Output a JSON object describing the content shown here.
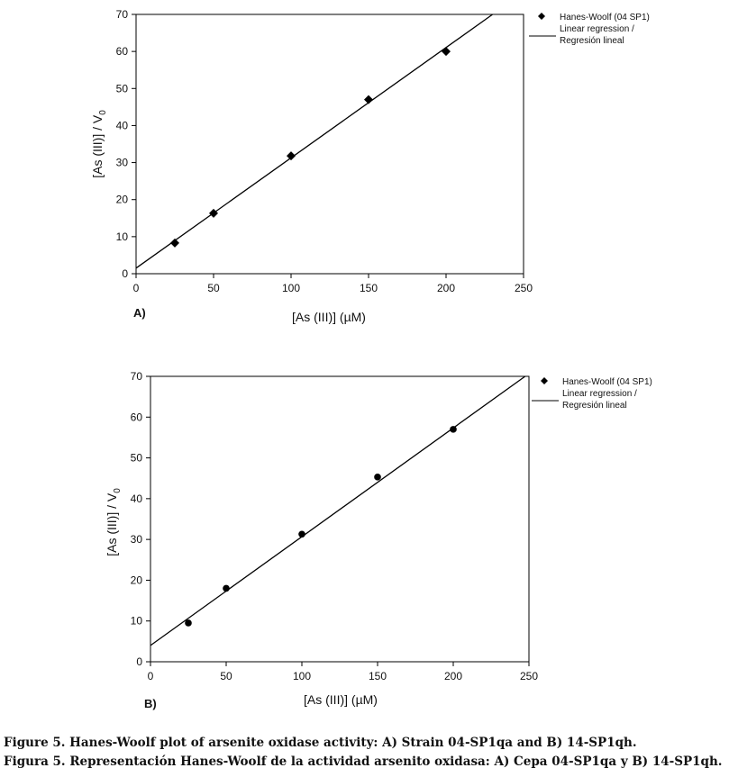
{
  "chart_data": [
    {
      "type": "scatter",
      "panel_label": "A)",
      "xlabel": "[As (III)] (µM)",
      "ylabel_main": "[As (III)] / V",
      "ylabel_sub": "0",
      "xlim": [
        0,
        250
      ],
      "ylim": [
        0,
        70
      ],
      "xticks": [
        0,
        50,
        100,
        150,
        200,
        250
      ],
      "yticks": [
        0,
        10,
        20,
        30,
        40,
        50,
        60,
        70
      ],
      "grid": false,
      "marker": "diamond",
      "series": [
        {
          "name": "Hanes-Woolf (04 SP1)",
          "x": [
            25,
            50,
            100,
            150,
            200
          ],
          "y": [
            8.3,
            16.3,
            31.8,
            47,
            60
          ]
        }
      ],
      "regression": {
        "name": "Linear regression / Regresión lineal",
        "intercept": 1.5,
        "slope": 0.2978
      },
      "legend": {
        "placement": "top-right, outside",
        "label1": "Hanes-Woolf (04 SP1)",
        "label2a": "Linear regression /",
        "label2b": "Regresión lineal"
      }
    },
    {
      "type": "scatter",
      "panel_label": "B)",
      "xlabel": "[As (III)] (µM)",
      "ylabel_main": "[As (III)] / V",
      "ylabel_sub": "0",
      "xlim": [
        0,
        250
      ],
      "ylim": [
        0,
        70
      ],
      "xticks": [
        0,
        50,
        100,
        150,
        200,
        250
      ],
      "yticks": [
        0,
        10,
        20,
        30,
        40,
        50,
        60,
        70
      ],
      "grid": false,
      "marker": "circle",
      "series": [
        {
          "name": "Hanes-Woolf (04 SP1)",
          "x": [
            25,
            50,
            100,
            150,
            200
          ],
          "y": [
            9.5,
            18,
            31.3,
            45.3,
            57
          ]
        }
      ],
      "regression": {
        "name": "Linear regression / Regresión lineal",
        "intercept": 4,
        "slope": 0.2667
      },
      "legend": {
        "placement": "top-right, outside",
        "label1": "Hanes-Woolf (04 SP1)",
        "label2a": "Linear regression /",
        "label2b": "Regresión lineal"
      }
    }
  ],
  "captions": {
    "en": "Figure 5. Hanes-Woolf plot of arsenite oxidase activity: A) Strain 04-SP1qa and B) 14-SP1qh.",
    "es": "Figura 5. Representación Hanes-Woolf de la actividad arsenito oxidasa: A) Cepa 04-SP1qa y B) 14-SP1qh."
  }
}
